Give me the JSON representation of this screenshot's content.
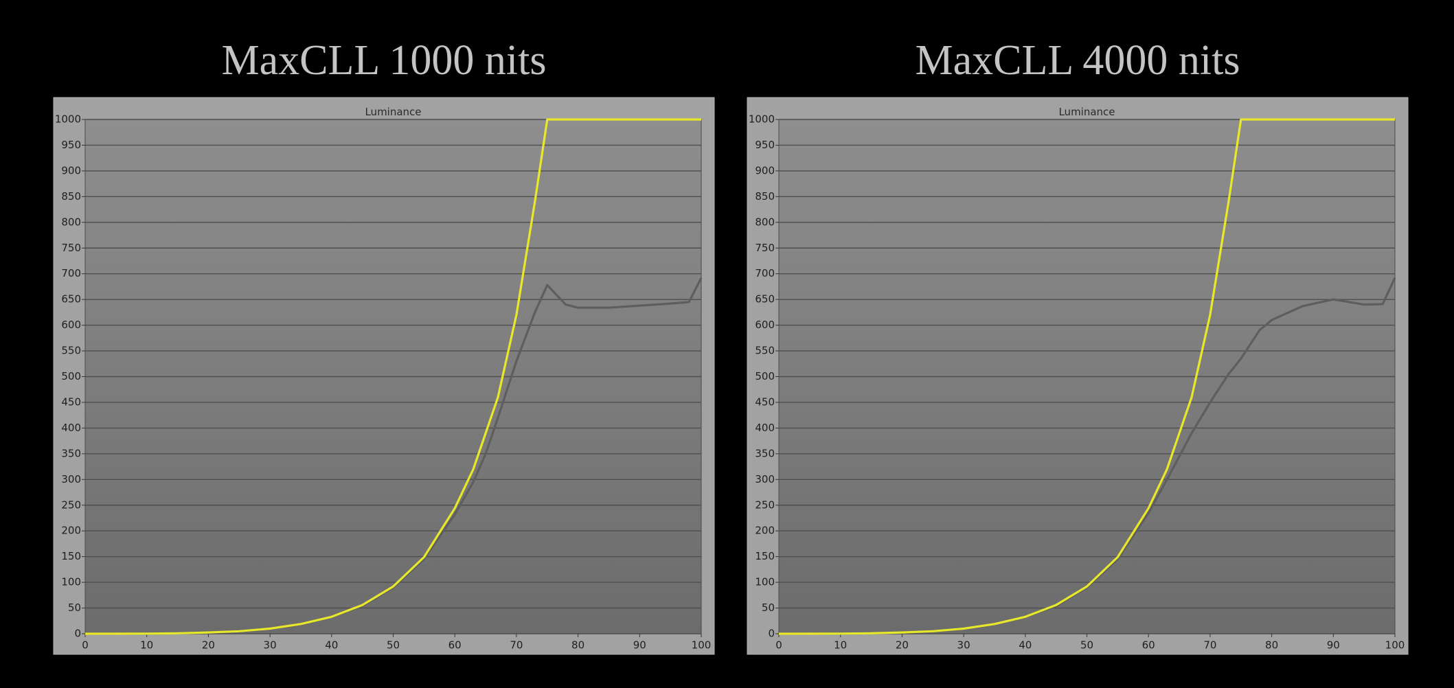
{
  "chart_data": [
    {
      "type": "line",
      "title": "MaxCLL 1000 nits",
      "subtitle": "Luminance",
      "x": [
        0,
        5,
        10,
        15,
        20,
        25,
        30,
        35,
        40,
        45,
        50,
        55,
        60,
        63,
        65,
        67,
        70,
        73,
        75,
        78,
        80,
        85,
        90,
        95,
        98,
        100
      ],
      "series": [
        {
          "color": "#e8e82a",
          "values": [
            0,
            0.1,
            0.3,
            1,
            2.5,
            5,
            10,
            19,
            33,
            56,
            92,
            149,
            244,
            320,
            390,
            460,
            620,
            840,
            1000,
            1000,
            1000,
            1000,
            1000,
            1000,
            1000,
            1000
          ]
        },
        {
          "color": "#5e5e5e",
          "values": [
            0,
            0.1,
            0.3,
            1,
            2.5,
            5,
            10,
            19,
            33,
            54,
            90,
            145,
            232,
            295,
            350,
            420,
            530,
            625,
            678,
            640,
            634,
            634,
            638,
            642,
            645,
            692
          ]
        }
      ],
      "xlim": [
        0,
        100
      ],
      "ylim": [
        0,
        1000
      ],
      "xticks": [
        0,
        10,
        20,
        30,
        40,
        50,
        60,
        70,
        80,
        90,
        100
      ],
      "yticks": [
        0,
        50,
        100,
        150,
        200,
        250,
        300,
        350,
        400,
        450,
        500,
        550,
        600,
        650,
        700,
        750,
        800,
        850,
        900,
        950,
        1000
      ],
      "grid": true
    },
    {
      "type": "line",
      "title": "MaxCLL 4000 nits",
      "subtitle": "Luminance",
      "x": [
        0,
        5,
        10,
        15,
        20,
        25,
        30,
        35,
        40,
        45,
        50,
        55,
        60,
        63,
        65,
        67,
        70,
        73,
        75,
        78,
        80,
        85,
        90,
        95,
        98,
        100
      ],
      "series": [
        {
          "color": "#e8e82a",
          "values": [
            0,
            0.1,
            0.3,
            1,
            2.5,
            5,
            10,
            19,
            33,
            56,
            92,
            149,
            244,
            320,
            390,
            460,
            620,
            840,
            1000,
            1000,
            1000,
            1000,
            1000,
            1000,
            1000,
            1000
          ]
        },
        {
          "color": "#5e5e5e",
          "values": [
            0,
            0.1,
            0.3,
            1,
            2.5,
            5,
            10,
            19,
            33,
            54,
            90,
            145,
            235,
            300,
            345,
            390,
            450,
            505,
            535,
            590,
            610,
            637,
            650,
            640,
            641,
            692
          ]
        }
      ],
      "xlim": [
        0,
        100
      ],
      "ylim": [
        0,
        1000
      ],
      "xticks": [
        0,
        10,
        20,
        30,
        40,
        50,
        60,
        70,
        80,
        90,
        100
      ],
      "yticks": [
        0,
        50,
        100,
        150,
        200,
        250,
        300,
        350,
        400,
        450,
        500,
        550,
        600,
        650,
        700,
        750,
        800,
        850,
        900,
        950,
        1000
      ],
      "grid": true
    }
  ]
}
